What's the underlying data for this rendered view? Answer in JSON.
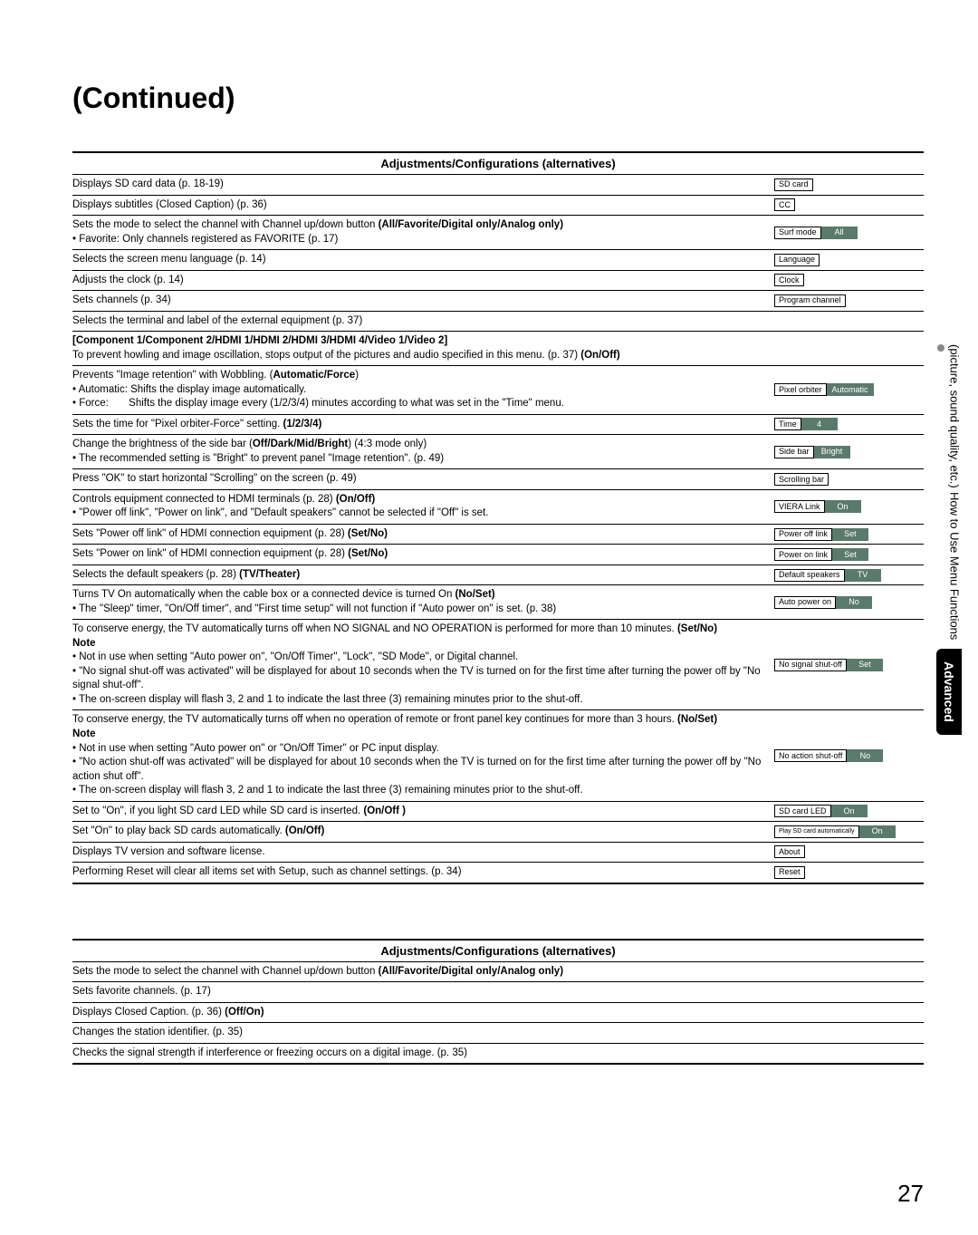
{
  "title": "(Continued)",
  "header1": "Adjustments/Configurations (alternatives)",
  "header2": "Adjustments/Configurations (alternatives)",
  "value_bg": "#5a7a6c",
  "rows": [
    {
      "desc": "Displays SD card data (p. 18-19)",
      "label": "SD card"
    },
    {
      "desc": "Displays subtitles (Closed Caption) (p. 36)",
      "label": "CC"
    },
    {
      "desc": "Sets the mode to select the channel with Channel up/down button <b>(All/Favorite/Digital only/Analog only)</b><br>• Favorite:  Only channels registered as FAVORITE (p. 17)",
      "label": "Surf mode",
      "value": "All"
    },
    {
      "desc": "Selects the screen menu language (p. 14)",
      "label": "Language"
    },
    {
      "desc": "Adjusts the clock (p. 14)",
      "label": "Clock"
    },
    {
      "desc": "Sets channels (p. 34)",
      "label": "Program channel"
    },
    {
      "desc": "Selects the terminal and label of the external equipment (p. 37)"
    },
    {
      "desc": "<b>[Component 1/Component 2/HDMI 1/HDMI 2/HDMI 3/HDMI 4/Video 1/Video 2]</b><br>To prevent howling and image oscillation, stops output of the pictures and audio specified in this menu. (p. 37) <b>(On/Off)</b>"
    },
    {
      "desc": "Prevents \"Image retention\" with Wobbling. (<b>Automatic/Force</b>)<br>• Automatic: Shifts the display image automatically.<br>• Force:&nbsp;&nbsp;&nbsp;&nbsp;&nbsp;&nbsp;&nbsp;Shifts the display image every (1/2/3/4) minutes according to what was set in the \"Time\" menu.",
      "label": "Pixel orbiter",
      "value": "Automatic"
    },
    {
      "desc": "Sets the time for \"Pixel orbiter-Force\" setting. <b>(1/2/3/4)</b>",
      "label": "Time",
      "value": "4"
    },
    {
      "desc": "Change the brightness of the side bar (<b>Off/Dark/Mid/Bright</b>) (4:3 mode only)<br>• The recommended setting is \"Bright\" to prevent panel \"Image retention\". (p. 49)",
      "label": "Side bar",
      "value": "Bright"
    },
    {
      "desc": "Press \"OK\" to start horizontal \"Scrolling\" on the screen (p. 49)",
      "label": "Scrolling bar"
    },
    {
      "desc": "Controls equipment connected to HDMI terminals (p. 28) <b>(On/Off)</b><br>• \"Power off link\", \"Power on link\", and \"Default speakers\" cannot be selected if \"Off\" is set.",
      "label": "VIERA Link",
      "value": "On"
    },
    {
      "desc": "Sets \"Power off link\" of HDMI connection equipment (p. 28) <b>(Set/No)</b>",
      "label": "Power off link",
      "value": "Set"
    },
    {
      "desc": "Sets \"Power on link\" of HDMI connection equipment (p. 28) <b>(Set/No)</b>",
      "label": "Power on link",
      "value": "Set"
    },
    {
      "desc": "Selects the default speakers (p. 28) <b>(TV/Theater)</b>",
      "label": "Default speakers",
      "value": "TV"
    },
    {
      "desc": "Turns TV On automatically when the cable box or a connected device is turned On <b>(No/Set)</b><br>• The \"Sleep\" timer, \"On/Off timer\", and \"First time setup\" will not function if \"Auto power on\" is set. (p. 38)",
      "label": "Auto power on",
      "value": "No"
    },
    {
      "desc": "To conserve energy, the TV automatically turns off when NO SIGNAL and NO OPERATION is performed for more than 10 minutes. <b>(Set/No)</b><br><b>Note</b><br>• Not in use when setting \"Auto power on\", \"On/Off Timer\", \"Lock\", \"SD Mode\", or Digital channel.<br>• \"No signal shut-off was activated\" will be displayed for about 10 seconds when the TV is turned on for the first time after turning the power off by \"No signal shut-off\".<br>• The on-screen display will flash 3, 2 and 1 to indicate the last three (3) remaining minutes prior to the shut-off.",
      "label": "No signal shut-off",
      "value": "Set"
    },
    {
      "desc": "To conserve energy, the TV automatically turns off when no operation of remote or front panel key continues for more than 3 hours. <b>(No/Set)</b><br><b>Note</b><br>• Not in use when setting \"Auto power on\" or \"On/Off Timer\" or PC input display.<br>• \"No action shut-off was activated\" will be displayed for about 10 seconds when the TV is turned on for the first time after turning the power off by \"No action shut off\".<br>• The on-screen display will flash 3, 2 and 1 to indicate the last three (3) remaining minutes prior to the shut-off.",
      "label": "No action shut-off",
      "value": "No"
    },
    {
      "desc": "Set to \"On\", if you light SD card LED while SD card is inserted. <b>(On/Off )</b>",
      "label": "SD card LED",
      "value": "On"
    },
    {
      "desc": "Set \"On\" to play back SD cards automatically. <b>(On/Off)</b>",
      "label": "Play SD card automatically",
      "value": "On",
      "small": true
    },
    {
      "desc": "Displays TV version and software license.",
      "label": "About"
    },
    {
      "desc": "Performing Reset will clear all items set with Setup, such as channel settings. (p. 34)",
      "label": "Reset",
      "thick": true
    }
  ],
  "rows2": [
    {
      "desc": "Sets the mode to select the channel with Channel up/down button <b>(All/Favorite/Digital only/Analog only)</b>"
    },
    {
      "desc": "Sets favorite channels. (p. 17)"
    },
    {
      "desc": "Displays Closed Caption. (p. 36) <b>(Off/On)</b>"
    },
    {
      "desc": "Changes the station identifier. (p. 35)"
    },
    {
      "desc": "Checks the signal strength if interference or freezing occurs on a digital image. (p. 35)",
      "thick": true
    }
  ],
  "side": {
    "line1": "How to Use Menu Functions",
    "line2": "(picture, sound quality, etc.)",
    "advanced": "Advanced"
  },
  "page_number": "27"
}
